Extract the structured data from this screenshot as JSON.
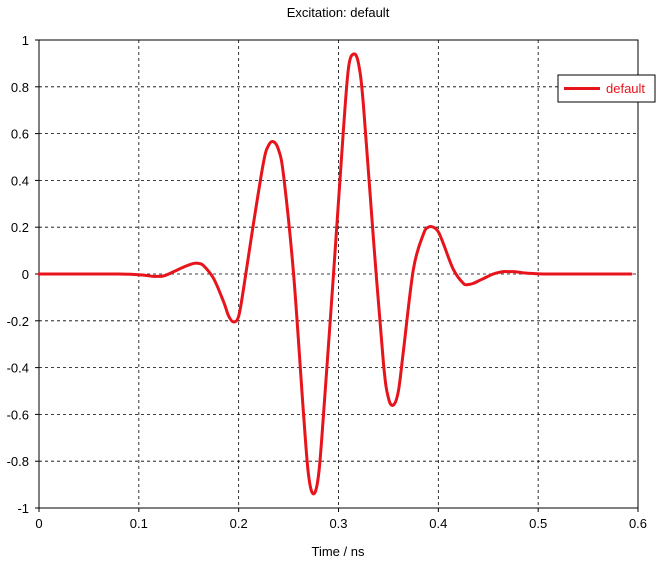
{
  "chart_data": {
    "type": "line",
    "title": "Excitation: default",
    "xlabel": "Time / ns",
    "ylabel": "",
    "xlim": [
      0,
      0.6
    ],
    "ylim": [
      -1,
      1
    ],
    "x_ticks": [
      0,
      0.1,
      0.2,
      0.3,
      0.4,
      0.5,
      0.6
    ],
    "x_tick_labels": [
      "0",
      "0.1",
      "0.2",
      "0.3",
      "0.4",
      "0.5",
      "0.6"
    ],
    "y_ticks": [
      1,
      0.8,
      0.6,
      0.4,
      0.2,
      0,
      -0.2,
      -0.4,
      -0.6,
      -0.8,
      -1
    ],
    "y_tick_labels": [
      "1",
      "0.8",
      "0.6",
      "0.4",
      "0.2",
      "0",
      "-0.2",
      "-0.4",
      "-0.6",
      "-0.8",
      "-1"
    ],
    "grid": true,
    "legend_position": "top-right",
    "series": [
      {
        "name": "default",
        "color": "#e8141c",
        "x": [
          0,
          0.05,
          0.08,
          0.095,
          0.105,
          0.115,
          0.125,
          0.135,
          0.145,
          0.155,
          0.16,
          0.165,
          0.175,
          0.185,
          0.19,
          0.195,
          0.2,
          0.205,
          0.215,
          0.225,
          0.23,
          0.235,
          0.24,
          0.245,
          0.255,
          0.265,
          0.27,
          0.275,
          0.28,
          0.285,
          0.295,
          0.305,
          0.31,
          0.315,
          0.32,
          0.325,
          0.335,
          0.345,
          0.35,
          0.355,
          0.36,
          0.365,
          0.375,
          0.385,
          0.39,
          0.395,
          0.4,
          0.405,
          0.415,
          0.425,
          0.43,
          0.435,
          0.44,
          0.445,
          0.455,
          0.465,
          0.47,
          0.475,
          0.48,
          0.485,
          0.495,
          0.505,
          0.52,
          0.55,
          0.593
        ],
        "y": [
          0,
          0,
          0,
          -0.002,
          -0.005,
          -0.01,
          -0.008,
          0.01,
          0.03,
          0.045,
          0.045,
          0.035,
          -0.02,
          -0.12,
          -0.18,
          -0.205,
          -0.18,
          -0.06,
          0.22,
          0.48,
          0.55,
          0.565,
          0.53,
          0.42,
          0.0,
          -0.6,
          -0.86,
          -0.94,
          -0.86,
          -0.6,
          0.0,
          0.62,
          0.88,
          0.94,
          0.9,
          0.72,
          0.15,
          -0.38,
          -0.53,
          -0.56,
          -0.5,
          -0.33,
          0.02,
          0.17,
          0.2,
          0.2,
          0.18,
          0.13,
          0.02,
          -0.04,
          -0.045,
          -0.04,
          -0.03,
          -0.02,
          0.0,
          0.01,
          0.01,
          0.01,
          0.008,
          0.005,
          0.002,
          0.0,
          0,
          0,
          0
        ]
      }
    ]
  }
}
